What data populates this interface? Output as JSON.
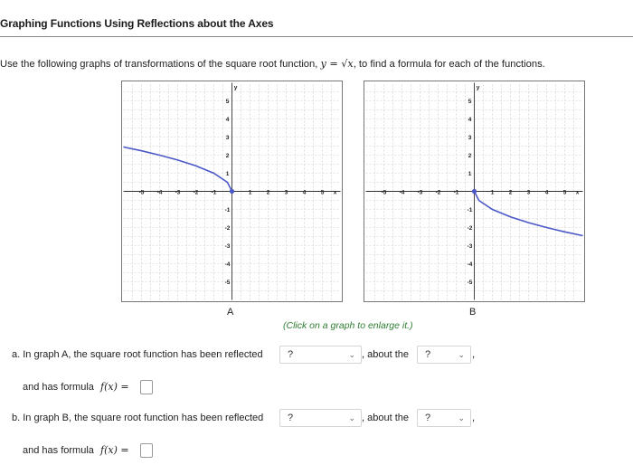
{
  "header": {
    "title": "Graphing Functions Using Reflections about the Axes"
  },
  "instructions": {
    "before": "Use the following graphs of transformations of the square root function, ",
    "equation": "y = √x",
    "after": ", to find a formula for each of the functions."
  },
  "graphs": [
    {
      "label": "A"
    },
    {
      "label": "B"
    }
  ],
  "enlarge_hint": "(Click on a graph to enlarge it.)",
  "questions": {
    "a": {
      "prompt": "a. In graph A, the square root function has been reflected",
      "reflect_select": "?",
      "about_text": ", about the",
      "axis_select": "?",
      "trail": ",",
      "formula_prefix": "and has formula",
      "formula_math": "f(x) ="
    },
    "b": {
      "prompt": "b. In graph B, the square root function has been reflected",
      "reflect_select": "?",
      "about_text": ", about the",
      "axis_select": "?",
      "trail": ",",
      "formula_prefix": "and has formula",
      "formula_math": "f(x) ="
    }
  },
  "chart_data": [
    {
      "type": "line",
      "label": "A",
      "xlabel": "x",
      "ylabel": "y",
      "xlim": [
        -6,
        6
      ],
      "ylim": [
        -6,
        6
      ],
      "x_ticks": [
        -5,
        -4,
        -3,
        -2,
        -1,
        1,
        2,
        3,
        4,
        5
      ],
      "y_ticks": [
        -5,
        -4,
        -3,
        -2,
        -1,
        1,
        2,
        3,
        4,
        5
      ],
      "grid": true,
      "color": "#4a58c8",
      "points": [
        [
          -6,
          2.45
        ],
        [
          -5,
          2.24
        ],
        [
          -4,
          2.0
        ],
        [
          -3,
          1.73
        ],
        [
          -2,
          1.41
        ],
        [
          -1,
          1.0
        ],
        [
          -0.25,
          0.5
        ],
        [
          0,
          0
        ]
      ]
    },
    {
      "type": "line",
      "label": "B",
      "xlabel": "x",
      "ylabel": "y",
      "xlim": [
        -6,
        6
      ],
      "ylim": [
        -6,
        6
      ],
      "x_ticks": [
        -5,
        -4,
        -3,
        -2,
        -1,
        1,
        2,
        3,
        4,
        5
      ],
      "y_ticks": [
        -5,
        -4,
        -3,
        -2,
        -1,
        1,
        2,
        3,
        4,
        5
      ],
      "grid": true,
      "color": "#4a58c8",
      "points": [
        [
          0,
          0
        ],
        [
          0.25,
          -0.5
        ],
        [
          1,
          -1.0
        ],
        [
          2,
          -1.41
        ],
        [
          3,
          -1.73
        ],
        [
          4,
          -2.0
        ],
        [
          5,
          -2.24
        ],
        [
          6,
          -2.45
        ]
      ]
    }
  ]
}
